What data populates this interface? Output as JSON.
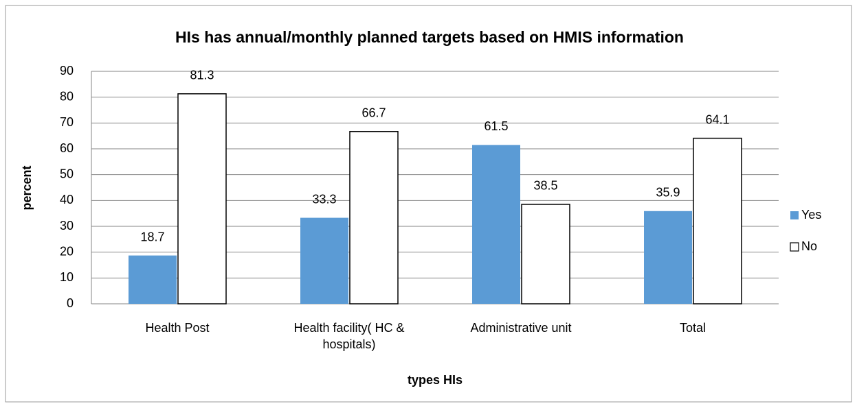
{
  "chart_data": {
    "type": "bar",
    "title": "HIs has annual/monthly planned targets based on HMIS information",
    "x_label": "types HIs",
    "y_label": "percent",
    "categories": [
      "Health Post",
      "Health facility( HC & hospitals)",
      "Administrative unit",
      "Total"
    ],
    "series": [
      {
        "name": "Yes",
        "color": "#5b9bd5",
        "values": [
          18.7,
          33.3,
          61.5,
          35.9
        ]
      },
      {
        "name": "No",
        "color": "#ffffff",
        "values": [
          81.3,
          66.7,
          38.5,
          64.1
        ]
      }
    ],
    "ylim": [
      0,
      90
    ],
    "yticks": [
      0,
      10,
      20,
      30,
      40,
      50,
      60,
      70,
      80,
      90
    ],
    "grid": true,
    "legend": "right"
  }
}
